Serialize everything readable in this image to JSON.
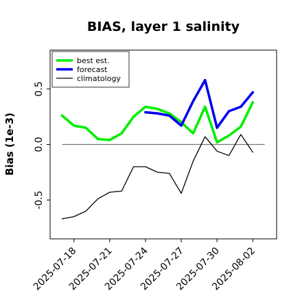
{
  "chart_data": {
    "type": "line",
    "title": "BIAS, layer 1 salinity",
    "xlabel": "",
    "ylabel": "Bias (1e-3)",
    "x": [
      "2025-07-17",
      "2025-07-18",
      "2025-07-19",
      "2025-07-20",
      "2025-07-21",
      "2025-07-22",
      "2025-07-23",
      "2025-07-24",
      "2025-07-25",
      "2025-07-26",
      "2025-07-27",
      "2025-07-28",
      "2025-07-29",
      "2025-07-30",
      "2025-07-31",
      "2025-08-01",
      "2025-08-02",
      "2025-08-03"
    ],
    "xticks": [
      "2025-07-18",
      "2025-07-21",
      "2025-07-24",
      "2025-07-27",
      "2025-07-30",
      "2025-08-02"
    ],
    "highlight_tick": "2025-07-24",
    "highlight_color": "#228B22",
    "yticks": [
      -0.5,
      0.0,
      0.5
    ],
    "ytick_labels": [
      "-0.5",
      "0.0",
      "0.5"
    ],
    "xlim": [
      "2025-07-16",
      "2025-08-04"
    ],
    "ylim": [
      -0.85,
      0.85
    ],
    "zero_line": true,
    "legend_position": "upper-left",
    "series": [
      {
        "name": "best est.",
        "color": "#00ee00",
        "x": [
          "2025-07-17",
          "2025-07-18",
          "2025-07-19",
          "2025-07-20",
          "2025-07-21",
          "2025-07-22",
          "2025-07-23",
          "2025-07-24",
          "2025-07-25",
          "2025-07-26",
          "2025-07-27",
          "2025-07-28",
          "2025-07-29",
          "2025-07-30",
          "2025-07-31",
          "2025-08-01",
          "2025-08-02"
        ],
        "values": [
          0.26,
          0.17,
          0.15,
          0.05,
          0.04,
          0.1,
          0.25,
          0.34,
          0.32,
          0.28,
          0.2,
          0.1,
          0.34,
          0.02,
          0.08,
          0.16,
          0.38
        ]
      },
      {
        "name": "forecast",
        "color": "#0000ee",
        "x": [
          "2025-07-24",
          "2025-07-25",
          "2025-07-26",
          "2025-07-27",
          "2025-07-28",
          "2025-07-29",
          "2025-07-30",
          "2025-07-31",
          "2025-08-01",
          "2025-08-02"
        ],
        "values": [
          0.29,
          0.28,
          0.26,
          0.17,
          0.39,
          0.58,
          0.15,
          0.3,
          0.34,
          0.47
        ]
      },
      {
        "name": "climatology",
        "color": "#000000",
        "x": [
          "2025-07-17",
          "2025-07-18",
          "2025-07-19",
          "2025-07-20",
          "2025-07-21",
          "2025-07-22",
          "2025-07-23",
          "2025-07-24",
          "2025-07-25",
          "2025-07-26",
          "2025-07-27",
          "2025-07-28",
          "2025-07-29",
          "2025-07-30",
          "2025-07-31",
          "2025-08-01",
          "2025-08-02"
        ],
        "values": [
          -0.67,
          -0.65,
          -0.6,
          -0.49,
          -0.43,
          -0.42,
          -0.2,
          -0.2,
          -0.25,
          -0.26,
          -0.44,
          -0.15,
          0.07,
          -0.06,
          -0.1,
          0.09,
          -0.07
        ]
      }
    ]
  }
}
